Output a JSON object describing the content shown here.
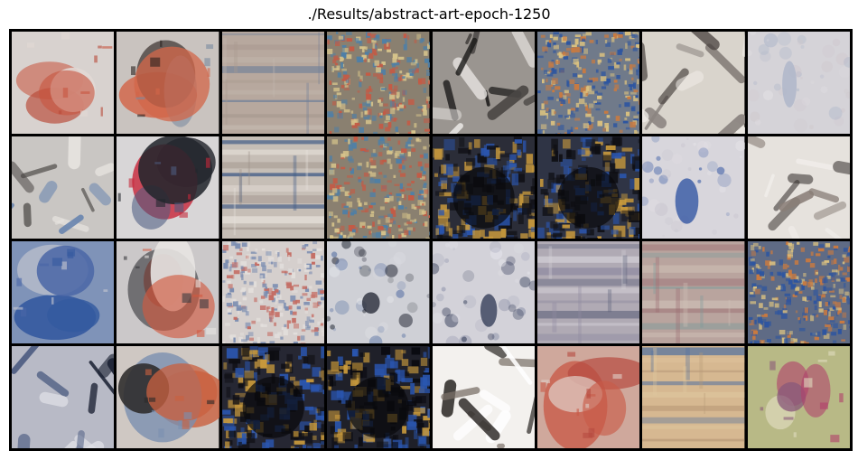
{
  "figure": {
    "title": "./Results/abstract-art-epoch-1250"
  },
  "tiles": [
    {
      "name": "tile-r1-c1",
      "bg": "#d8d2cf",
      "accents": [
        "#c8553f",
        "#b94a38",
        "#e2d9d4"
      ],
      "style": "blob"
    },
    {
      "name": "tile-r1-c2",
      "bg": "#c9c3bf",
      "accents": [
        "#d2664a",
        "#2a2220",
        "#7a8aa0"
      ],
      "style": "blob"
    },
    {
      "name": "tile-r1-c3",
      "bg": "#b7a89e",
      "accents": [
        "#6f7f98",
        "#a89a90",
        "#c4b8ae"
      ],
      "style": "stripes"
    },
    {
      "name": "tile-r1-c4",
      "bg": "#8a8070",
      "accents": [
        "#4f7fa6",
        "#c45a45",
        "#d6c38b"
      ],
      "style": "noise"
    },
    {
      "name": "tile-r1-c5",
      "bg": "#9a9590",
      "accents": [
        "#1b1a19",
        "#e4e1de",
        "#4a4644"
      ],
      "style": "strokes"
    },
    {
      "name": "tile-r1-c6",
      "bg": "#707a8a",
      "accents": [
        "#2d55a0",
        "#c97a40",
        "#d9c080"
      ],
      "style": "noise"
    },
    {
      "name": "tile-r1-c7",
      "bg": "#d9d4cc",
      "accents": [
        "#4a4340",
        "#8b8480",
        "#f1ede8"
      ],
      "style": "strokes"
    },
    {
      "name": "tile-r1-c8",
      "bg": "#d5d3d8",
      "accents": [
        "#a9b3c8",
        "#cfc7cc",
        "#e6e3e6"
      ],
      "style": "pale"
    },
    {
      "name": "tile-r2-c1",
      "bg": "#c9c6c3",
      "accents": [
        "#4a4644",
        "#6a86b0",
        "#e7e4e0"
      ],
      "style": "strokes"
    },
    {
      "name": "tile-r2-c2",
      "bg": "#d8d6d7",
      "accents": [
        "#23262d",
        "#c7283a",
        "#4c5b80"
      ],
      "style": "blob"
    },
    {
      "name": "tile-r2-c3",
      "bg": "#c6beb6",
      "accents": [
        "#3a5684",
        "#e9e3dd",
        "#9c9088"
      ],
      "style": "stripes"
    },
    {
      "name": "tile-r2-c4",
      "bg": "#8a8070",
      "accents": [
        "#4f7fa6",
        "#c45a45",
        "#d6c38b"
      ],
      "style": "noise"
    },
    {
      "name": "tile-r2-c5",
      "bg": "#2b2d38",
      "accents": [
        "#2a56b0",
        "#c99a3c",
        "#0f0f14"
      ],
      "style": "dark"
    },
    {
      "name": "tile-r2-c6",
      "bg": "#2f3445",
      "accents": [
        "#2a56b0",
        "#c99a3c",
        "#0f0f14"
      ],
      "style": "dark"
    },
    {
      "name": "tile-r2-c7",
      "bg": "#d8d6dc",
      "accents": [
        "#2a4fa0",
        "#c9c6cf",
        "#e6e4e8"
      ],
      "style": "pale"
    },
    {
      "name": "tile-r2-c8",
      "bg": "#e6e2dd",
      "accents": [
        "#3a3432",
        "#8a7f78",
        "#f4f1ee"
      ],
      "style": "strokes"
    },
    {
      "name": "tile-r3-c1",
      "bg": "#7f93b8",
      "accents": [
        "#355aa0",
        "#c6c8d0",
        "#4a66a6"
      ],
      "style": "blob"
    },
    {
      "name": "tile-r3-c2",
      "bg": "#cbc8c9",
      "accents": [
        "#d2593f",
        "#3a3a40",
        "#e8e4e2"
      ],
      "style": "blob"
    },
    {
      "name": "tile-r3-c3",
      "bg": "#d5cfcd",
      "accents": [
        "#c46b62",
        "#7a8cb0",
        "#e3dfdc"
      ],
      "style": "noise"
    },
    {
      "name": "tile-r3-c4",
      "bg": "#cfd0d6",
      "accents": [
        "#1f2330",
        "#3e5c98",
        "#e5e6ea"
      ],
      "style": "pale"
    },
    {
      "name": "tile-r3-c5",
      "bg": "#d3d2d9",
      "accents": [
        "#2c3552",
        "#8a90a8",
        "#e6e6ec"
      ],
      "style": "pale"
    },
    {
      "name": "tile-r3-c6",
      "bg": "#b0aab4",
      "accents": [
        "#5a5f78",
        "#d4d0d8",
        "#8e8aa0"
      ],
      "style": "stripes"
    },
    {
      "name": "tile-r3-c7",
      "bg": "#b9a49e",
      "accents": [
        "#9a6a70",
        "#7a9a9a",
        "#d0c2b8"
      ],
      "style": "stripes"
    },
    {
      "name": "tile-r3-c8",
      "bg": "#5f6b85",
      "accents": [
        "#2d55a0",
        "#c97a40",
        "#d9c080"
      ],
      "style": "noise"
    },
    {
      "name": "tile-r4-c1",
      "bg": "#b8bac6",
      "accents": [
        "#1e2436",
        "#4a5a80",
        "#e1e2e8"
      ],
      "style": "strokes"
    },
    {
      "name": "tile-r4-c2",
      "bg": "#cfc8c3",
      "accents": [
        "#c9603f",
        "#7a8fb0",
        "#2c2a2a"
      ],
      "style": "blob"
    },
    {
      "name": "tile-r4-c3",
      "bg": "#262733",
      "accents": [
        "#2a56b0",
        "#c99a3c",
        "#0d0d12"
      ],
      "style": "dark"
    },
    {
      "name": "tile-r4-c4",
      "bg": "#1f2029",
      "accents": [
        "#2a56b0",
        "#c99a3c",
        "#0a0a10"
      ],
      "style": "dark"
    },
    {
      "name": "tile-r4-c5",
      "bg": "#f3f1ee",
      "accents": [
        "#2a2624",
        "#7a7068",
        "#ffffff"
      ],
      "style": "strokes"
    },
    {
      "name": "tile-r4-c6",
      "bg": "#cfa89c",
      "accents": [
        "#c85a48",
        "#b64a40",
        "#e0cfc8"
      ],
      "style": "blob"
    },
    {
      "name": "tile-r4-c7",
      "bg": "#d6b891",
      "accents": [
        "#4f6fa0",
        "#e0c8a0",
        "#b89a78"
      ],
      "style": "stripes"
    },
    {
      "name": "tile-r4-c8",
      "bg": "#b8b986",
      "accents": [
        "#b0406a",
        "#e0dcc0",
        "#8a5a7a"
      ],
      "style": "blob"
    }
  ]
}
